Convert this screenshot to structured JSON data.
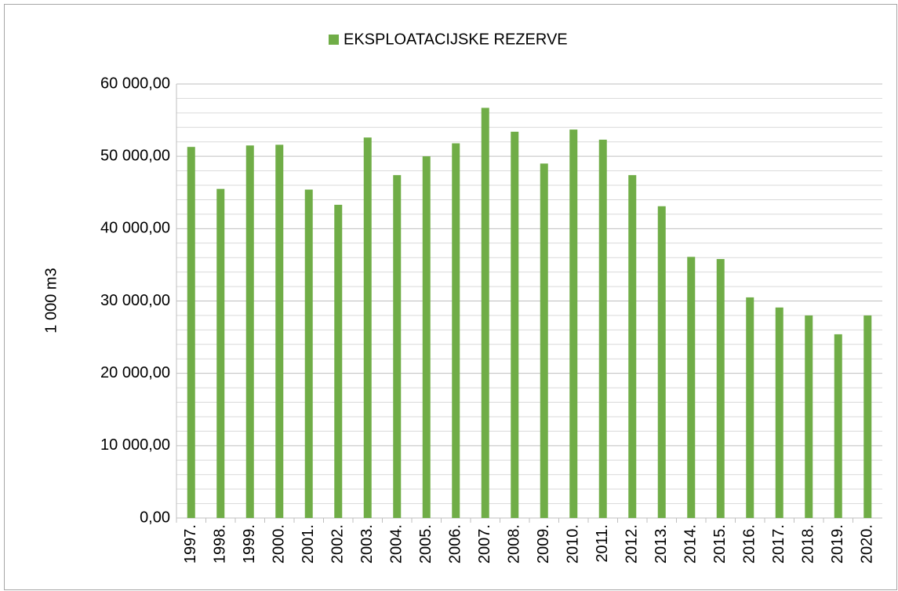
{
  "chart_data": {
    "type": "bar",
    "legend_position": "top",
    "y_axis_label": "1 000 m3",
    "series": [
      {
        "name": "EKSPLOATACIJSKE REZERVE",
        "color": "#70ad47",
        "values": [
          51300,
          45500,
          51500,
          51600,
          45400,
          43300,
          52600,
          47400,
          50000,
          51800,
          56700,
          53400,
          49000,
          53700,
          52300,
          47400,
          43100,
          36100,
          35800,
          30500,
          29100,
          28000,
          25400,
          28000
        ]
      }
    ],
    "categories": [
      "1997.",
      "1998.",
      "1999.",
      "2000.",
      "2001.",
      "2002.",
      "2003.",
      "2004.",
      "2005.",
      "2006.",
      "2007.",
      "2008.",
      "2009.",
      "2010.",
      "2011.",
      "2012.",
      "2013.",
      "2014.",
      "2015.",
      "2016.",
      "2017.",
      "2018.",
      "2019.",
      "2020."
    ],
    "ylim": [
      0,
      60000
    ],
    "yticks": [
      {
        "value": 0,
        "label": "0,00"
      },
      {
        "value": 10000,
        "label": "10 000,00"
      },
      {
        "value": 20000,
        "label": "20 000,00"
      },
      {
        "value": 30000,
        "label": "30 000,00"
      },
      {
        "value": 40000,
        "label": "40 000,00"
      },
      {
        "value": 50000,
        "label": "50 000,00"
      },
      {
        "value": 60000,
        "label": "60 000,00"
      }
    ],
    "yticks_minor": [
      2000,
      4000,
      6000,
      8000,
      12000,
      14000,
      16000,
      18000,
      22000,
      24000,
      26000,
      28000,
      32000,
      34000,
      36000,
      38000,
      42000,
      44000,
      46000,
      48000,
      52000,
      54000,
      56000,
      58000
    ],
    "grid": true
  }
}
